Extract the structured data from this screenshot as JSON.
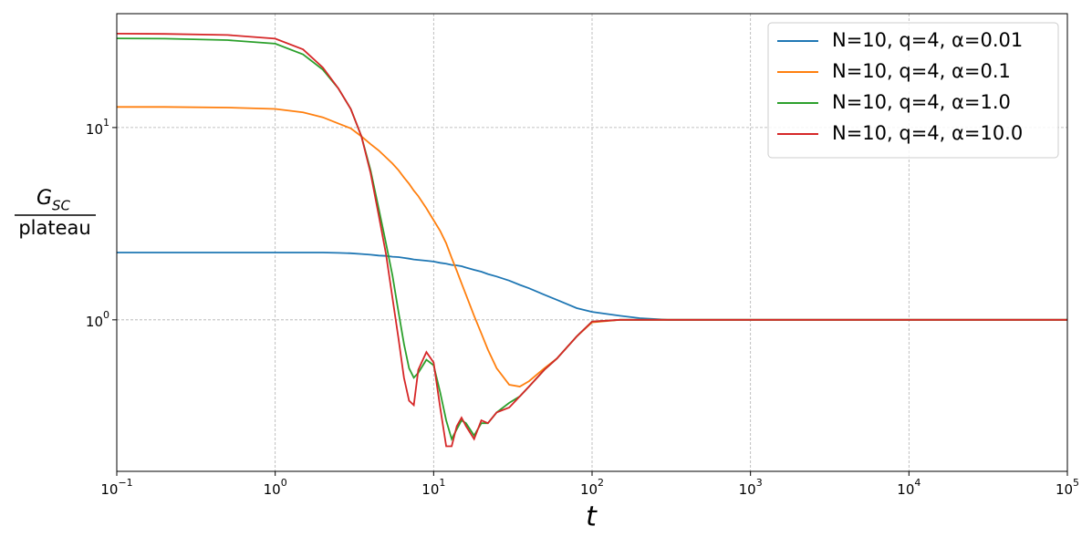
{
  "chart_data": {
    "type": "line",
    "log_x": true,
    "log_y": true,
    "grid": true,
    "legend_position": "upper right",
    "x_label": "t",
    "y_label": {
      "numerator": "G",
      "subscript": "SC",
      "denominator": "plateau"
    },
    "xlim": [
      0.1,
      100000
    ],
    "ylim": [
      0.163,
      39.1
    ],
    "xticks": [
      {
        "value": 0.1,
        "label": "10",
        "exponent": "−1"
      },
      {
        "value": 1,
        "label": "10",
        "exponent": "0"
      },
      {
        "value": 10,
        "label": "10",
        "exponent": "1"
      },
      {
        "value": 100,
        "label": "10",
        "exponent": "2"
      },
      {
        "value": 1000,
        "label": "10",
        "exponent": "3"
      },
      {
        "value": 10000,
        "label": "10",
        "exponent": "4"
      },
      {
        "value": 100000,
        "label": "10",
        "exponent": "5"
      }
    ],
    "yticks": [
      {
        "value": 1,
        "label": "10",
        "exponent": "0"
      },
      {
        "value": 10,
        "label": "10",
        "exponent": "1"
      }
    ],
    "x": [
      0.1,
      0.2,
      0.5,
      1,
      1.5,
      2,
      2.5,
      3,
      3.5,
      4,
      4.5,
      5,
      5.5,
      6,
      6.5,
      7,
      7.5,
      8,
      9,
      10,
      11,
      12,
      13,
      14,
      15,
      16,
      18,
      20,
      22,
      25,
      30,
      35,
      40,
      50,
      60,
      80,
      100,
      150,
      200,
      300,
      500,
      1000,
      10000,
      100000
    ],
    "series": [
      {
        "name": "N=10, q=4, α=0.01",
        "color": "#1f77b4",
        "values": [
          2.24,
          2.24,
          2.24,
          2.24,
          2.24,
          2.24,
          2.23,
          2.22,
          2.2,
          2.18,
          2.16,
          2.15,
          2.13,
          2.12,
          2.1,
          2.08,
          2.06,
          2.05,
          2.03,
          2.01,
          1.98,
          1.96,
          1.93,
          1.92,
          1.9,
          1.87,
          1.82,
          1.78,
          1.73,
          1.68,
          1.6,
          1.52,
          1.46,
          1.35,
          1.27,
          1.15,
          1.1,
          1.05,
          1.02,
          1.0,
          1.0,
          1.0,
          1.0,
          1.0
        ]
      },
      {
        "name": "N=10, q=4, α=0.1",
        "color": "#ff7f0e",
        "values": [
          12.8,
          12.8,
          12.7,
          12.5,
          12.0,
          11.3,
          10.5,
          9.9,
          9.0,
          8.2,
          7.6,
          7.0,
          6.5,
          6.0,
          5.5,
          5.1,
          4.7,
          4.4,
          3.8,
          3.3,
          2.9,
          2.5,
          2.1,
          1.8,
          1.55,
          1.35,
          1.05,
          0.85,
          0.7,
          0.56,
          0.46,
          0.45,
          0.48,
          0.56,
          0.63,
          0.82,
          0.97,
          1.0,
          1.0,
          1.0,
          1.0,
          1.0,
          1.0,
          1.0
        ]
      },
      {
        "name": "N=10, q=4, α=1.0",
        "color": "#2ca02c",
        "values": [
          29.1,
          29.0,
          28.5,
          27.3,
          24,
          20,
          16,
          12.5,
          9,
          6,
          3.8,
          2.5,
          1.7,
          1.1,
          0.75,
          0.56,
          0.5,
          0.53,
          0.62,
          0.58,
          0.42,
          0.3,
          0.24,
          0.27,
          0.3,
          0.29,
          0.25,
          0.29,
          0.29,
          0.33,
          0.37,
          0.4,
          0.45,
          0.55,
          0.63,
          0.82,
          0.98,
          1.0,
          1.0,
          1.0,
          1.0,
          1.0,
          1.0,
          1.0
        ]
      },
      {
        "name": "N=10, q=4, α=10.0",
        "color": "#d62728",
        "values": [
          30.8,
          30.7,
          30.3,
          29,
          25.5,
          20.5,
          16,
          12.5,
          9,
          5.8,
          3.5,
          2.2,
          1.3,
          0.8,
          0.5,
          0.38,
          0.36,
          0.55,
          0.68,
          0.6,
          0.35,
          0.22,
          0.22,
          0.28,
          0.31,
          0.28,
          0.24,
          0.3,
          0.29,
          0.33,
          0.35,
          0.4,
          0.45,
          0.55,
          0.63,
          0.82,
          0.98,
          1.0,
          1.0,
          1.0,
          1.0,
          1.0,
          1.0,
          1.0
        ]
      }
    ]
  }
}
